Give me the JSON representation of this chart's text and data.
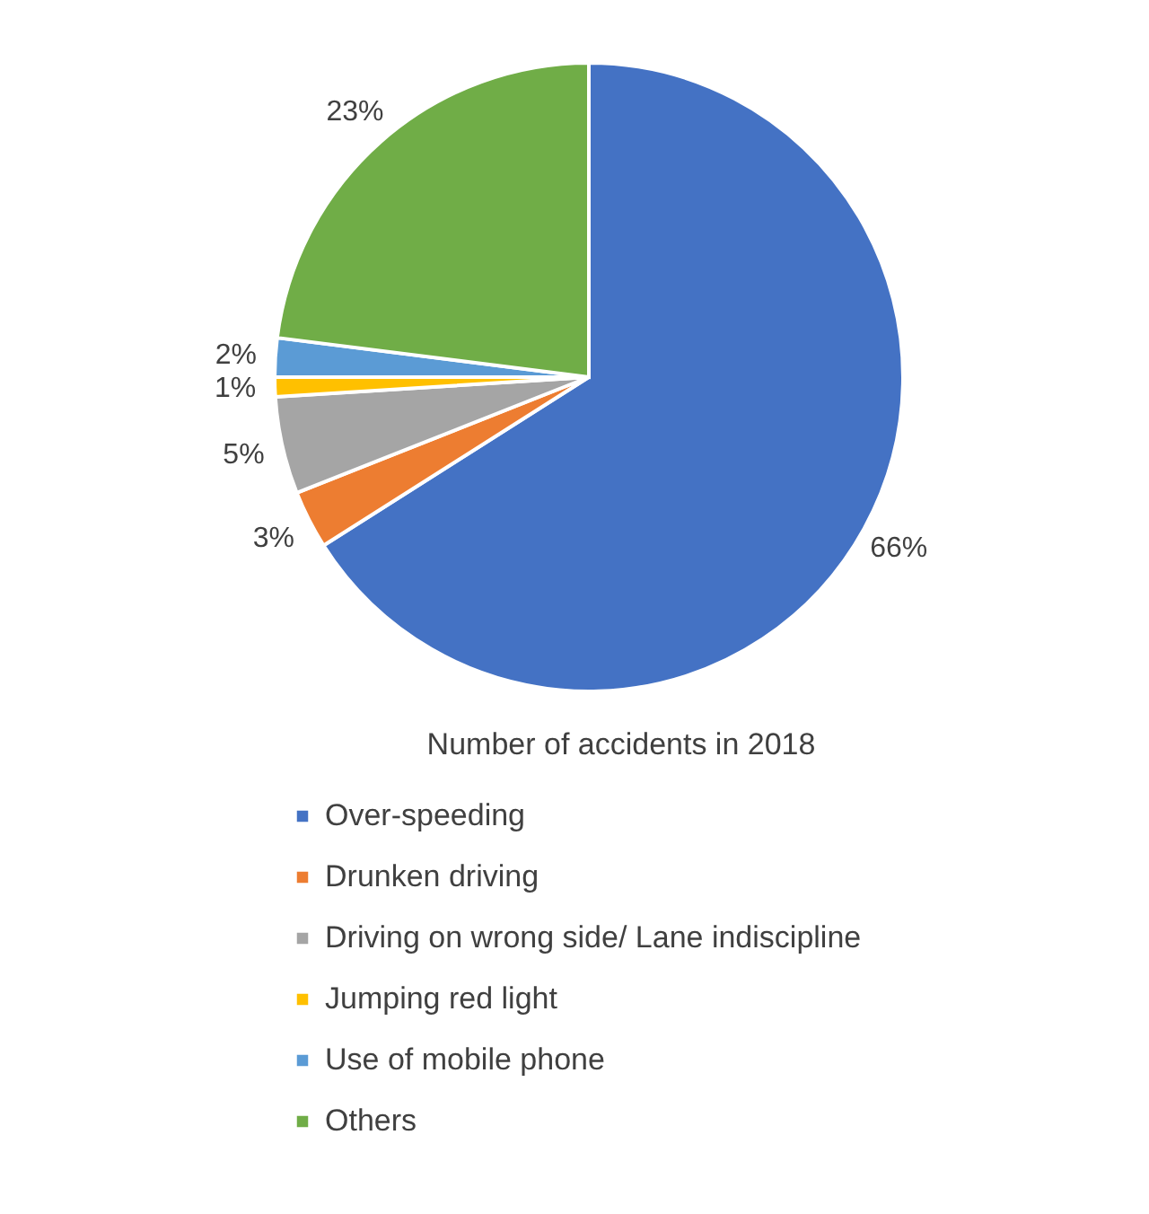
{
  "chart_data": {
    "type": "pie",
    "title": "Number of accidents in 2018",
    "categories": [
      "Over-speeding",
      "Drunken driving",
      "Driving on wrong side/ Lane indiscipline",
      "Jumping red light",
      "Use of mobile phone",
      "Others"
    ],
    "values": [
      66,
      3,
      5,
      1,
      2,
      23
    ],
    "value_labels": [
      "66%",
      "3%",
      "5%",
      "1%",
      "2%",
      "23%"
    ],
    "colors": [
      "#4472c4",
      "#ed7d31",
      "#a5a5a5",
      "#ffc000",
      "#5b9bd5",
      "#70ad47"
    ],
    "legend": "bottom"
  }
}
